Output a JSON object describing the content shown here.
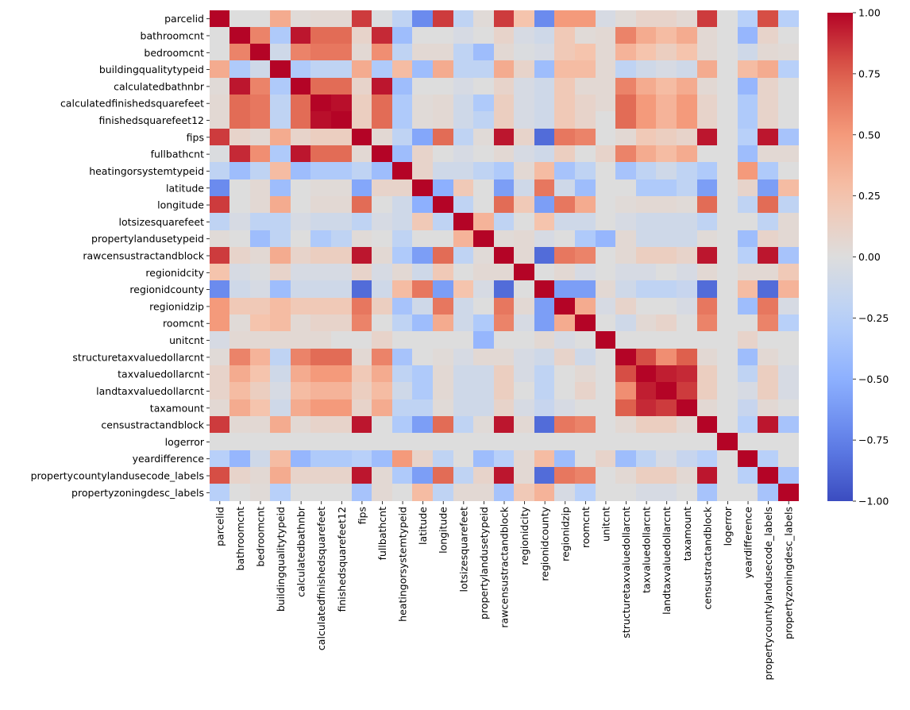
{
  "chart_data": {
    "type": "heatmap",
    "title": "",
    "xlabel": "",
    "ylabel": "",
    "labels": [
      "parcelid",
      "bathroomcnt",
      "bedroomcnt",
      "buildingqualitytypeid",
      "calculatedbathnbr",
      "calculatedfinishedsquarefeet",
      "finishedsquarefeet12",
      "fips",
      "fullbathcnt",
      "heatingorsystemtypeid",
      "latitude",
      "longitude",
      "lotsizesquarefeet",
      "propertylandusetypeid",
      "rawcensustractandblock",
      "regionidcity",
      "regionidcounty",
      "regionidzip",
      "roomcnt",
      "unitcnt",
      "structuretaxvaluedollarcnt",
      "taxvaluedollarcnt",
      "landtaxvaluedollarcnt",
      "taxamount",
      "censustractandblock",
      "logerror",
      "yeardifference",
      "propertycountylandusecode_labels",
      "propertyzoningdesc_labels"
    ],
    "values": [
      [
        1.0,
        0.0,
        0.0,
        0.4,
        0.03,
        0.05,
        0.05,
        0.85,
        -0.02,
        -0.2,
        -0.7,
        0.85,
        -0.2,
        0.03,
        0.85,
        0.25,
        -0.7,
        0.5,
        0.5,
        -0.05,
        0.03,
        0.1,
        0.1,
        0.05,
        0.85,
        0.0,
        -0.25,
        0.8,
        -0.25
      ],
      [
        0.0,
        1.0,
        0.6,
        -0.3,
        0.95,
        0.7,
        0.7,
        0.1,
        0.9,
        -0.4,
        0.0,
        0.0,
        -0.05,
        0.0,
        0.1,
        -0.05,
        -0.1,
        0.2,
        0.03,
        0.05,
        0.6,
        0.4,
        0.3,
        0.4,
        0.05,
        0.0,
        -0.45,
        0.1,
        0.0
      ],
      [
        0.0,
        0.6,
        1.0,
        -0.1,
        0.6,
        0.65,
        0.65,
        0.05,
        0.55,
        -0.2,
        0.05,
        0.05,
        -0.2,
        -0.4,
        0.05,
        -0.02,
        -0.05,
        0.2,
        0.25,
        0.05,
        0.35,
        0.25,
        0.15,
        0.25,
        0.05,
        0.0,
        -0.1,
        0.05,
        0.03
      ],
      [
        0.4,
        -0.3,
        -0.1,
        1.0,
        -0.3,
        -0.2,
        -0.2,
        0.4,
        -0.3,
        0.3,
        -0.4,
        0.4,
        -0.2,
        -0.2,
        0.4,
        0.1,
        -0.4,
        0.3,
        0.3,
        0.05,
        -0.2,
        -0.1,
        -0.05,
        -0.1,
        0.4,
        0.0,
        0.3,
        0.4,
        -0.25
      ],
      [
        0.03,
        0.95,
        0.6,
        -0.3,
        1.0,
        0.7,
        0.7,
        0.1,
        0.95,
        -0.4,
        0.0,
        0.0,
        -0.05,
        0.0,
        0.1,
        -0.05,
        -0.1,
        0.2,
        0.05,
        0.05,
        0.6,
        0.4,
        0.3,
        0.4,
        0.05,
        0.0,
        -0.45,
        0.1,
        0.0
      ],
      [
        0.05,
        0.7,
        0.65,
        -0.2,
        0.7,
        1.0,
        0.97,
        0.15,
        0.7,
        -0.3,
        0.03,
        0.05,
        -0.1,
        -0.3,
        0.15,
        -0.05,
        -0.1,
        0.2,
        0.1,
        0.05,
        0.7,
        0.5,
        0.35,
        0.5,
        0.1,
        0.0,
        -0.3,
        0.1,
        0.0
      ],
      [
        0.05,
        0.7,
        0.65,
        -0.2,
        0.7,
        0.97,
        1.0,
        0.15,
        0.7,
        -0.3,
        0.03,
        0.05,
        -0.1,
        -0.2,
        0.15,
        -0.05,
        -0.1,
        0.2,
        0.1,
        0.0,
        0.7,
        0.5,
        0.35,
        0.5,
        0.1,
        0.0,
        -0.3,
        0.1,
        0.0
      ],
      [
        0.85,
        0.1,
        0.05,
        0.4,
        0.1,
        0.15,
        0.15,
        1.0,
        0.05,
        -0.2,
        -0.55,
        0.7,
        -0.2,
        0.03,
        0.95,
        0.1,
        -0.85,
        0.65,
        0.6,
        0.0,
        0.05,
        0.2,
        0.15,
        0.1,
        0.95,
        0.0,
        -0.25,
        0.95,
        -0.35
      ],
      [
        -0.02,
        0.9,
        0.55,
        -0.3,
        0.95,
        0.7,
        0.7,
        0.05,
        1.0,
        -0.4,
        0.1,
        0.0,
        -0.05,
        0.0,
        0.05,
        -0.05,
        -0.1,
        0.15,
        0.0,
        0.1,
        0.6,
        0.4,
        0.3,
        0.4,
        0.0,
        0.0,
        -0.4,
        0.05,
        0.05
      ],
      [
        -0.2,
        -0.4,
        -0.2,
        0.3,
        -0.4,
        -0.3,
        -0.3,
        -0.2,
        -0.4,
        1.0,
        0.1,
        -0.1,
        -0.1,
        -0.2,
        -0.3,
        0.05,
        0.3,
        -0.35,
        -0.2,
        0.0,
        -0.35,
        -0.2,
        -0.1,
        -0.2,
        -0.3,
        0.0,
        0.5,
        -0.3,
        0.0
      ],
      [
        -0.7,
        0.0,
        0.05,
        -0.4,
        0.0,
        0.03,
        0.03,
        -0.55,
        0.1,
        0.1,
        1.0,
        -0.5,
        0.2,
        0.0,
        -0.6,
        -0.1,
        0.65,
        -0.1,
        -0.4,
        0.0,
        0.0,
        -0.3,
        -0.3,
        -0.2,
        -0.6,
        0.0,
        0.1,
        -0.6,
        0.3
      ],
      [
        0.85,
        0.0,
        0.05,
        0.4,
        0.0,
        0.05,
        0.05,
        0.7,
        0.0,
        -0.1,
        -0.5,
        1.0,
        -0.2,
        0.0,
        0.7,
        0.2,
        -0.6,
        0.65,
        0.4,
        0.0,
        0.03,
        0.05,
        0.05,
        0.03,
        0.7,
        0.0,
        -0.2,
        0.7,
        -0.2
      ],
      [
        -0.2,
        -0.05,
        -0.2,
        -0.2,
        -0.05,
        -0.1,
        -0.1,
        -0.2,
        -0.05,
        -0.1,
        0.2,
        -0.2,
        1.0,
        0.35,
        -0.2,
        0.0,
        0.25,
        -0.1,
        -0.1,
        0.0,
        -0.05,
        -0.1,
        -0.1,
        -0.1,
        -0.2,
        0.0,
        0.0,
        -0.2,
        0.05
      ],
      [
        0.03,
        0.0,
        -0.4,
        -0.2,
        0.0,
        -0.3,
        -0.2,
        0.03,
        0.0,
        -0.2,
        0.0,
        0.0,
        0.35,
        1.0,
        0.03,
        0.05,
        -0.05,
        0.0,
        -0.3,
        -0.45,
        0.05,
        -0.1,
        -0.1,
        -0.1,
        0.03,
        0.0,
        -0.4,
        0.1,
        0.05
      ],
      [
        0.85,
        0.1,
        0.05,
        0.4,
        0.1,
        0.15,
        0.15,
        0.95,
        0.05,
        -0.3,
        -0.6,
        0.7,
        -0.2,
        0.03,
        1.0,
        0.05,
        -0.85,
        0.65,
        0.6,
        0.0,
        0.05,
        0.15,
        0.15,
        0.1,
        0.95,
        0.0,
        -0.25,
        0.95,
        -0.35
      ],
      [
        0.25,
        -0.05,
        -0.02,
        0.1,
        -0.05,
        -0.05,
        -0.05,
        0.1,
        -0.05,
        0.05,
        -0.1,
        0.2,
        0.0,
        0.05,
        0.05,
        1.0,
        0.0,
        0.05,
        -0.05,
        0.0,
        -0.05,
        -0.05,
        0.0,
        -0.05,
        0.05,
        0.0,
        0.05,
        0.05,
        0.2
      ],
      [
        -0.7,
        -0.1,
        -0.05,
        -0.4,
        -0.1,
        -0.1,
        -0.1,
        -0.85,
        -0.1,
        0.3,
        0.65,
        -0.6,
        0.25,
        -0.05,
        -0.85,
        0.0,
        1.0,
        -0.6,
        -0.6,
        0.05,
        -0.1,
        -0.2,
        -0.2,
        -0.15,
        -0.85,
        0.0,
        0.3,
        -0.85,
        0.35
      ],
      [
        0.5,
        0.2,
        0.2,
        0.3,
        0.2,
        0.2,
        0.2,
        0.65,
        0.15,
        -0.35,
        -0.1,
        0.65,
        -0.1,
        0.0,
        0.65,
        0.05,
        -0.6,
        1.0,
        0.4,
        -0.05,
        0.1,
        0.0,
        0.0,
        -0.05,
        0.65,
        0.0,
        -0.4,
        0.65,
        -0.05
      ],
      [
        0.5,
        0.03,
        0.25,
        0.3,
        0.05,
        0.1,
        0.1,
        0.6,
        0.0,
        -0.2,
        -0.4,
        0.4,
        -0.1,
        -0.3,
        0.6,
        -0.05,
        -0.6,
        0.4,
        1.0,
        0.0,
        -0.1,
        0.05,
        0.1,
        0.0,
        0.6,
        0.0,
        0.0,
        0.6,
        -0.25
      ],
      [
        -0.05,
        0.05,
        0.05,
        0.05,
        0.05,
        0.05,
        0.0,
        0.0,
        0.1,
        0.0,
        0.0,
        0.0,
        0.0,
        -0.45,
        0.0,
        0.0,
        0.05,
        -0.05,
        0.0,
        1.0,
        0.0,
        0.0,
        0.0,
        0.0,
        0.0,
        0.0,
        0.1,
        0.0,
        0.0
      ],
      [
        0.03,
        0.6,
        0.35,
        -0.2,
        0.6,
        0.7,
        0.7,
        0.05,
        0.6,
        -0.35,
        0.0,
        0.03,
        -0.05,
        0.05,
        0.05,
        -0.05,
        -0.1,
        0.1,
        -0.1,
        0.0,
        1.0,
        0.8,
        0.55,
        0.75,
        0.05,
        0.0,
        -0.4,
        0.05,
        0.0
      ],
      [
        0.1,
        0.4,
        0.25,
        -0.1,
        0.4,
        0.5,
        0.5,
        0.2,
        0.4,
        -0.2,
        -0.3,
        0.05,
        -0.1,
        -0.1,
        0.15,
        -0.05,
        -0.2,
        0.0,
        0.05,
        0.0,
        0.8,
        1.0,
        0.93,
        0.9,
        0.15,
        0.0,
        -0.2,
        0.15,
        -0.05
      ],
      [
        0.1,
        0.3,
        0.15,
        -0.05,
        0.3,
        0.35,
        0.35,
        0.15,
        0.3,
        -0.1,
        -0.3,
        0.05,
        -0.1,
        -0.1,
        0.15,
        0.0,
        -0.2,
        0.0,
        0.1,
        0.0,
        0.55,
        0.93,
        1.0,
        0.85,
        0.15,
        0.0,
        -0.05,
        0.15,
        -0.05
      ],
      [
        0.05,
        0.4,
        0.25,
        -0.1,
        0.4,
        0.5,
        0.5,
        0.1,
        0.4,
        -0.2,
        -0.2,
        0.03,
        -0.1,
        -0.1,
        0.1,
        -0.05,
        -0.15,
        -0.05,
        0.0,
        0.0,
        0.75,
        0.9,
        0.85,
        1.0,
        0.05,
        0.0,
        -0.15,
        0.05,
        0.0
      ],
      [
        0.85,
        0.05,
        0.05,
        0.4,
        0.05,
        0.1,
        0.1,
        0.95,
        0.0,
        -0.3,
        -0.6,
        0.7,
        -0.2,
        0.03,
        0.95,
        0.05,
        -0.85,
        0.65,
        0.6,
        0.0,
        0.05,
        0.15,
        0.15,
        0.05,
        1.0,
        0.0,
        -0.25,
        0.95,
        -0.35
      ],
      [
        0.0,
        0.0,
        0.0,
        0.0,
        0.0,
        0.0,
        0.0,
        0.0,
        0.0,
        0.0,
        0.0,
        0.0,
        0.0,
        0.0,
        0.0,
        0.0,
        0.0,
        0.0,
        0.0,
        0.0,
        0.0,
        0.0,
        0.0,
        0.0,
        0.0,
        1.0,
        0.0,
        0.0,
        0.0
      ],
      [
        -0.25,
        -0.45,
        -0.1,
        0.3,
        -0.45,
        -0.3,
        -0.3,
        -0.25,
        -0.4,
        0.5,
        0.1,
        -0.2,
        0.0,
        -0.4,
        -0.25,
        0.05,
        0.3,
        -0.4,
        0.0,
        0.1,
        -0.4,
        -0.2,
        -0.05,
        -0.15,
        -0.25,
        0.0,
        1.0,
        -0.25,
        0.0
      ],
      [
        0.8,
        0.1,
        0.05,
        0.4,
        0.1,
        0.1,
        0.1,
        0.95,
        0.05,
        -0.3,
        -0.6,
        0.7,
        -0.2,
        0.1,
        0.95,
        0.05,
        -0.85,
        0.65,
        0.6,
        0.0,
        0.05,
        0.15,
        0.15,
        0.05,
        0.95,
        0.0,
        -0.25,
        1.0,
        -0.35
      ],
      [
        -0.25,
        0.0,
        0.03,
        -0.25,
        0.0,
        0.0,
        0.0,
        -0.35,
        0.05,
        0.0,
        0.3,
        -0.2,
        0.05,
        0.05,
        -0.35,
        0.2,
        0.35,
        -0.05,
        -0.25,
        0.0,
        0.0,
        -0.05,
        -0.05,
        0.0,
        -0.35,
        0.0,
        0.0,
        -0.35,
        1.0
      ]
    ],
    "vmin": -1,
    "vmax": 1,
    "colormap": "coolwarm",
    "colors": {
      "low": "#3b4cc0",
      "mid": "#dddddd",
      "high": "#b40426"
    },
    "colorbar": {
      "ticks": [
        1.0,
        0.75,
        0.5,
        0.25,
        0.0,
        -0.25,
        -0.5,
        -0.75,
        -1.0
      ],
      "tick_labels": [
        "1.00",
        "0.75",
        "0.50",
        "0.25",
        "0.00",
        "−0.25",
        "−0.50",
        "−0.75",
        "−1.00"
      ]
    }
  }
}
